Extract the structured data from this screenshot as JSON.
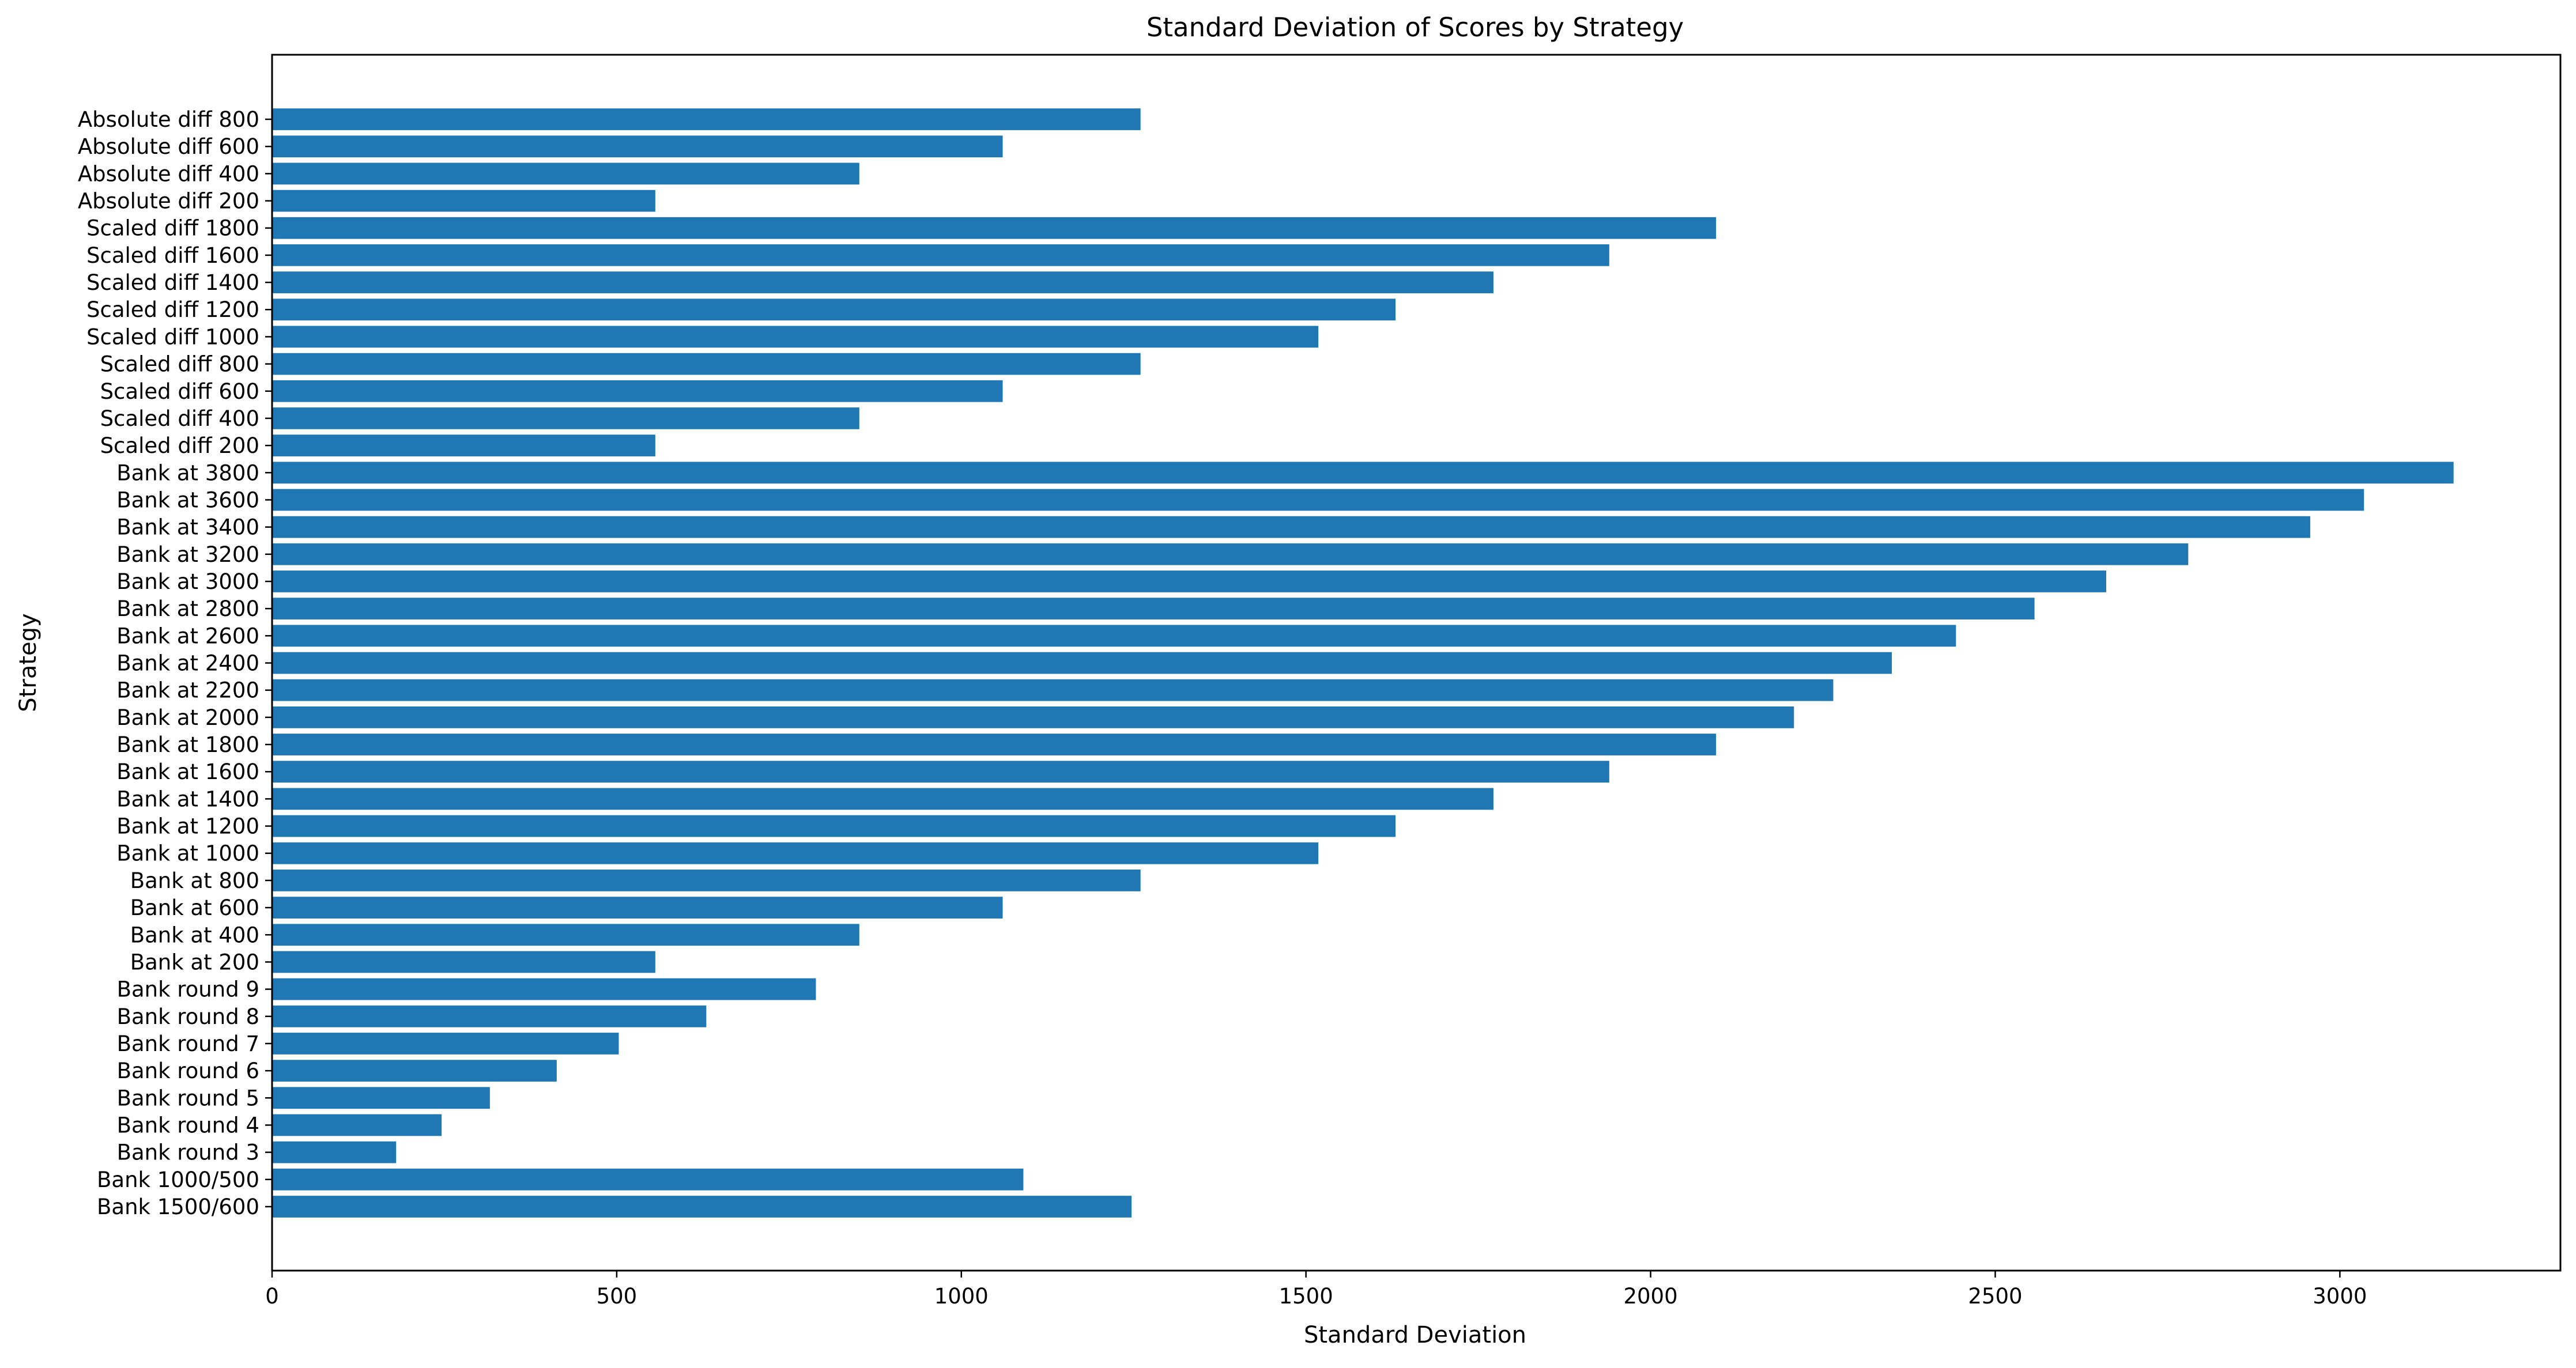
{
  "chart_data": {
    "type": "bar",
    "orientation": "horizontal",
    "title": "Standard Deviation of Scores by Strategy",
    "xlabel": "Standard Deviation",
    "ylabel": "Strategy",
    "xlim": [
      0,
      3320
    ],
    "xticks": [
      0,
      500,
      1000,
      1500,
      2000,
      2500,
      3000
    ],
    "grid": false,
    "color": "#1f77b4",
    "categories": [
      "Absolute diff 800",
      "Absolute diff 600",
      "Absolute diff 400",
      "Absolute diff 200",
      "Scaled diff 1800",
      "Scaled diff 1600",
      "Scaled diff 1400",
      "Scaled diff 1200",
      "Scaled diff 1000",
      "Scaled diff 800",
      "Scaled diff 600",
      "Scaled diff 400",
      "Scaled diff 200",
      "Bank at 3800",
      "Bank at 3600",
      "Bank at 3400",
      "Bank at 3200",
      "Bank at 3000",
      "Bank at 2800",
      "Bank at 2600",
      "Bank at 2400",
      "Bank at 2200",
      "Bank at 2000",
      "Bank at 1800",
      "Bank at 1600",
      "Bank at 1400",
      "Bank at 1200",
      "Bank at 1000",
      "Bank at 800",
      "Bank at 600",
      "Bank at 400",
      "Bank at 200",
      "Bank round 9",
      "Bank round 8",
      "Bank round 7",
      "Bank round 6",
      "Bank round 5",
      "Bank round 4",
      "Bank round 3",
      "Bank 1000/500",
      "Bank 1500/600"
    ],
    "values": [
      1260,
      1060,
      852,
      556,
      2095,
      1940,
      1772,
      1630,
      1518,
      1260,
      1060,
      852,
      556,
      3165,
      3035,
      2957,
      2780,
      2661,
      2557,
      2443,
      2350,
      2265,
      2208,
      2095,
      1940,
      1772,
      1630,
      1518,
      1260,
      1060,
      852,
      556,
      789,
      630,
      503,
      413,
      316,
      246,
      180,
      1090,
      1247
    ]
  }
}
